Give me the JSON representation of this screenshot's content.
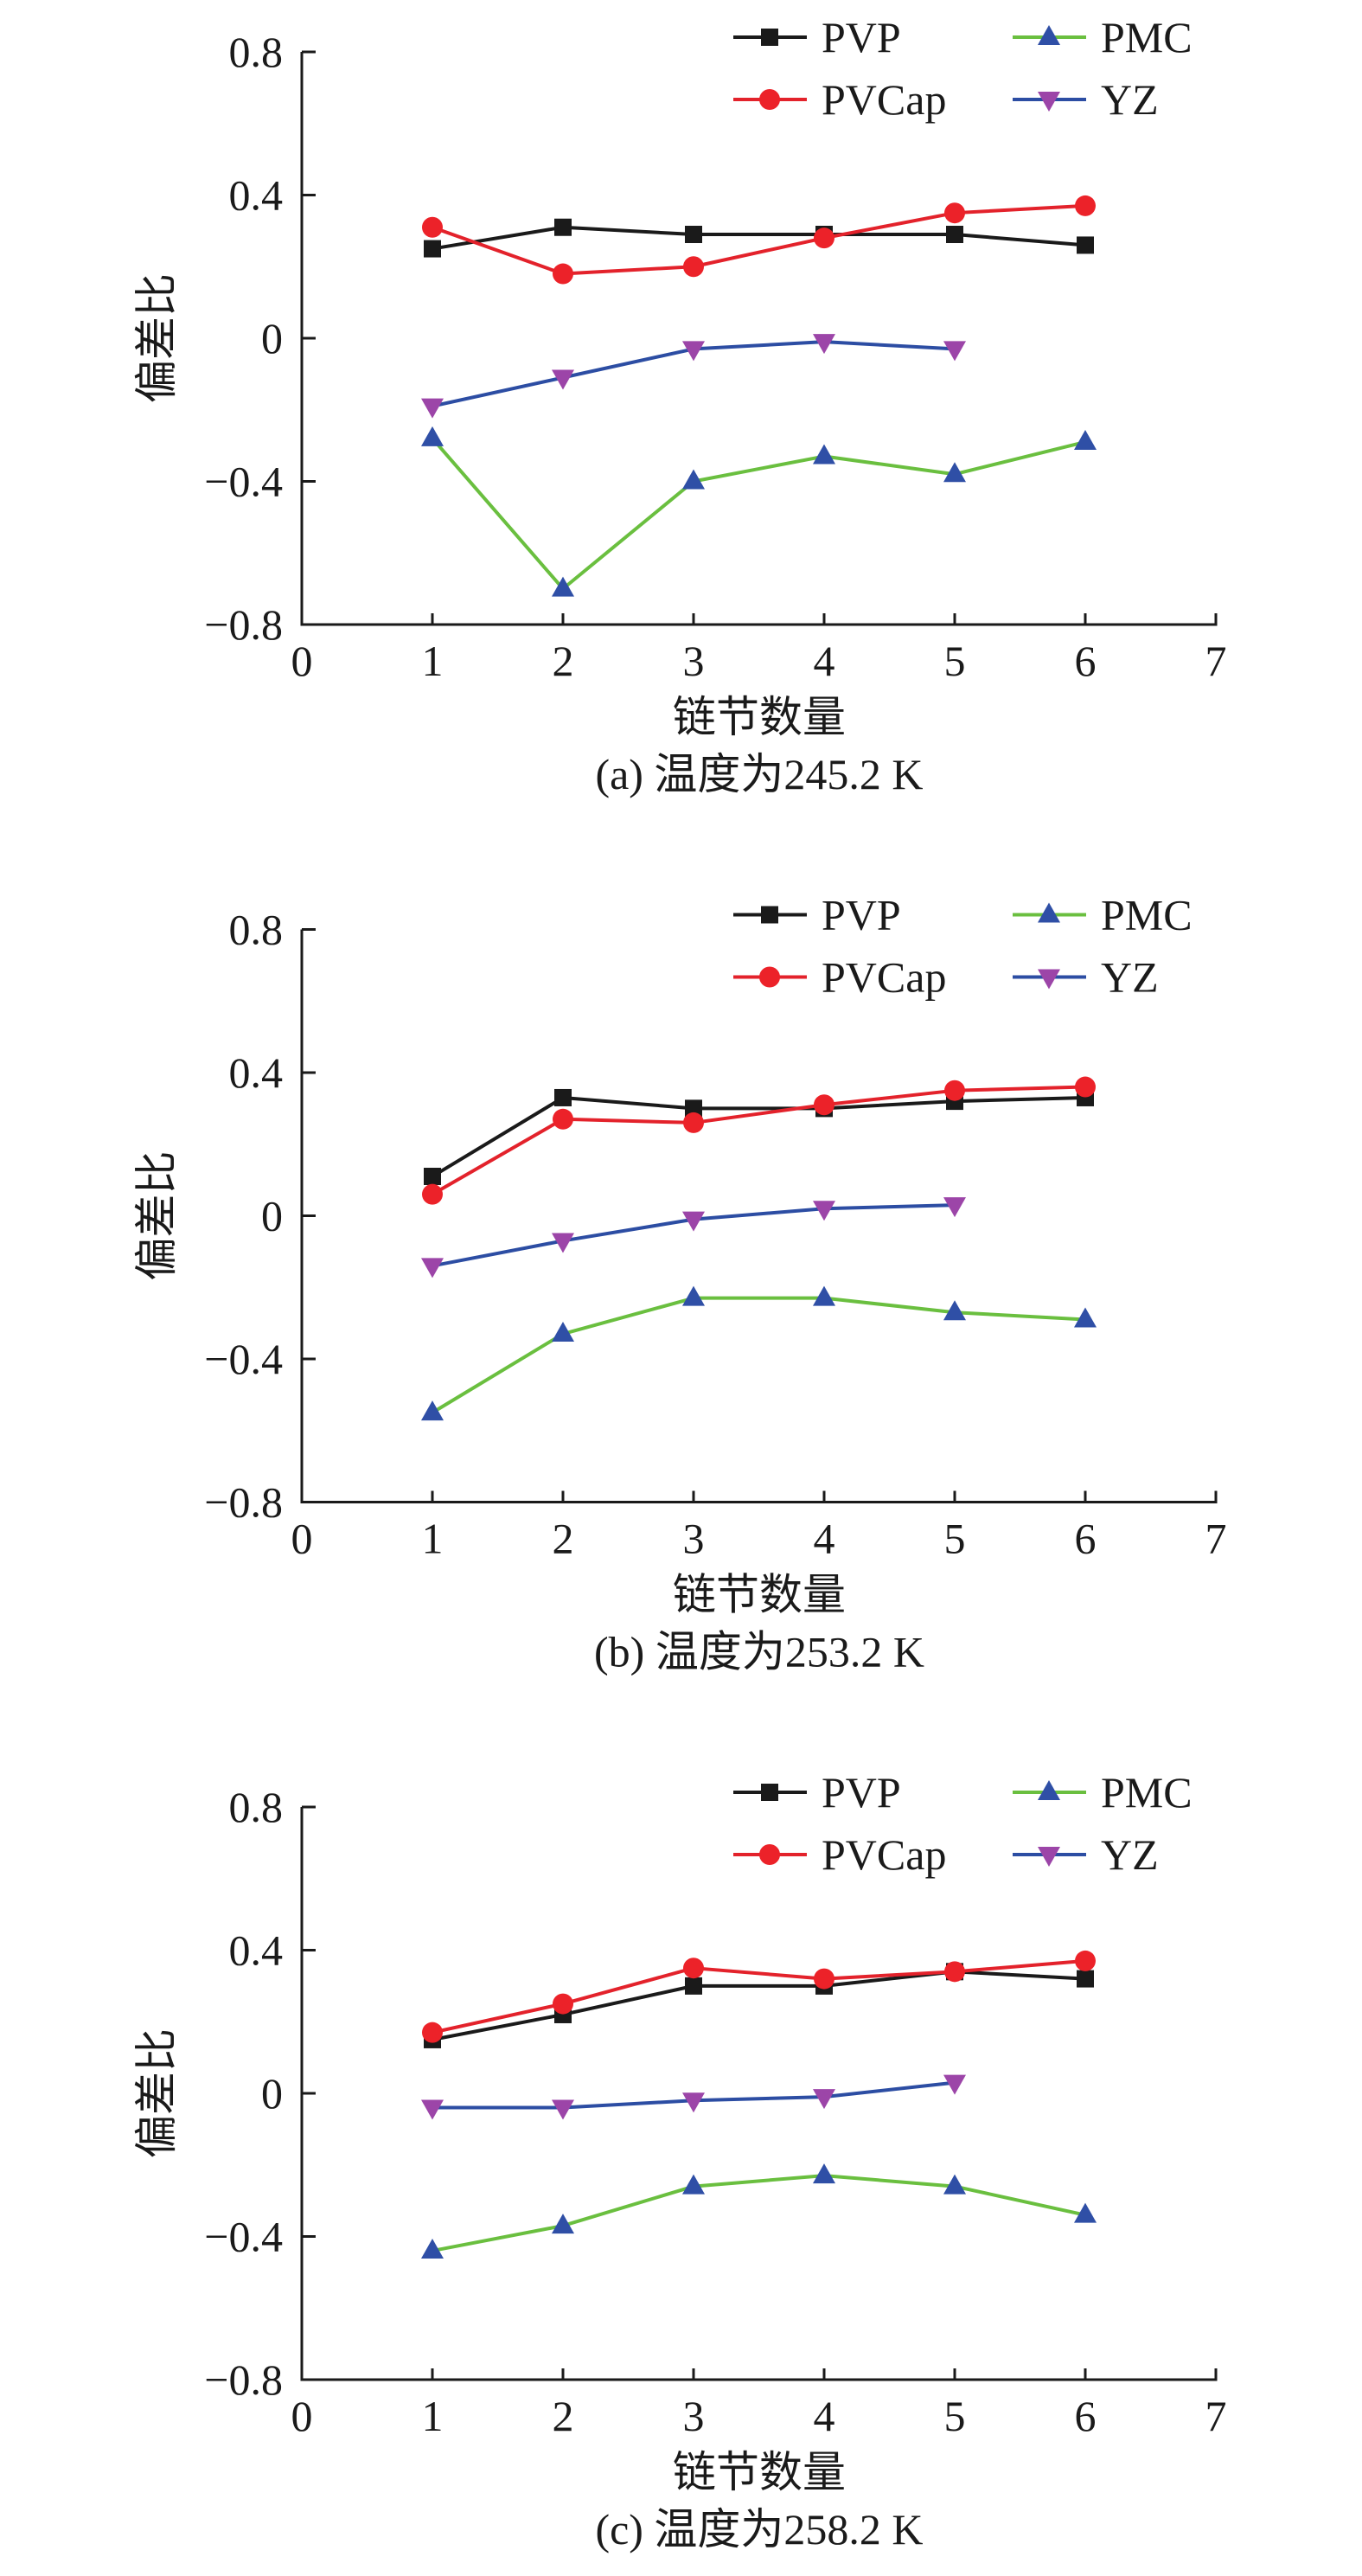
{
  "chart_data": [
    {
      "type": "line",
      "panel": "a",
      "caption": "(a) 温度为245.2 K",
      "xlabel": "链节数量",
      "ylabel": "偏差比",
      "xlim": [
        0,
        7
      ],
      "ylim": [
        -0.8,
        0.8
      ],
      "xticks": [
        "0",
        "1",
        "2",
        "3",
        "4",
        "5",
        "6",
        "7"
      ],
      "yticks": [
        "0.8",
        "0.4",
        "0",
        "−0.4",
        "−0.8"
      ],
      "legend_position": "top-right",
      "grid": false,
      "series": [
        {
          "name": "PVP",
          "x": [
            1,
            2,
            3,
            4,
            5,
            6
          ],
          "values": [
            0.25,
            0.31,
            0.29,
            0.29,
            0.29,
            0.26
          ]
        },
        {
          "name": "PVCap",
          "x": [
            1,
            2,
            3,
            4,
            5,
            6
          ],
          "values": [
            0.31,
            0.18,
            0.2,
            0.28,
            0.35,
            0.37
          ]
        },
        {
          "name": "PMC",
          "x": [
            1,
            2,
            3,
            4,
            5,
            6
          ],
          "values": [
            -0.28,
            -0.7,
            -0.4,
            -0.33,
            -0.38,
            -0.29
          ]
        },
        {
          "name": "YZ",
          "x": [
            1,
            2,
            3,
            4,
            5
          ],
          "values": [
            -0.19,
            -0.11,
            -0.03,
            -0.01,
            -0.03
          ]
        }
      ]
    },
    {
      "type": "line",
      "panel": "b",
      "caption": "(b) 温度为253.2 K",
      "xlabel": "链节数量",
      "ylabel": "偏差比",
      "xlim": [
        0,
        7
      ],
      "ylim": [
        -0.8,
        0.8
      ],
      "xticks": [
        "0",
        "1",
        "2",
        "3",
        "4",
        "5",
        "6",
        "7"
      ],
      "yticks": [
        "0.8",
        "0.4",
        "0",
        "−0.4",
        "−0.8"
      ],
      "legend_position": "top-right",
      "grid": false,
      "series": [
        {
          "name": "PVP",
          "x": [
            1,
            2,
            3,
            4,
            5,
            6
          ],
          "values": [
            0.11,
            0.33,
            0.3,
            0.3,
            0.32,
            0.33
          ]
        },
        {
          "name": "PVCap",
          "x": [
            1,
            2,
            3,
            4,
            5,
            6
          ],
          "values": [
            0.06,
            0.27,
            0.26,
            0.31,
            0.35,
            0.36
          ]
        },
        {
          "name": "PMC",
          "x": [
            1,
            2,
            3,
            4,
            5,
            6
          ],
          "values": [
            -0.55,
            -0.33,
            -0.23,
            -0.23,
            -0.27,
            -0.29
          ]
        },
        {
          "name": "YZ",
          "x": [
            1,
            2,
            3,
            4,
            5
          ],
          "values": [
            -0.14,
            -0.07,
            -0.01,
            0.02,
            0.03
          ]
        }
      ]
    },
    {
      "type": "line",
      "panel": "c",
      "caption": "(c) 温度为258.2 K",
      "xlabel": "链节数量",
      "ylabel": "偏差比",
      "xlim": [
        0,
        7
      ],
      "ylim": [
        -0.8,
        0.8
      ],
      "xticks": [
        "0",
        "1",
        "2",
        "3",
        "4",
        "5",
        "6",
        "7"
      ],
      "yticks": [
        "0.8",
        "0.4",
        "0",
        "−0.4",
        "−0.8"
      ],
      "legend_position": "top-right",
      "grid": false,
      "series": [
        {
          "name": "PVP",
          "x": [
            1,
            2,
            3,
            4,
            5,
            6
          ],
          "values": [
            0.15,
            0.22,
            0.3,
            0.3,
            0.34,
            0.32
          ]
        },
        {
          "name": "PVCap",
          "x": [
            1,
            2,
            3,
            4,
            5,
            6
          ],
          "values": [
            0.17,
            0.25,
            0.35,
            0.32,
            0.34,
            0.37
          ]
        },
        {
          "name": "PMC",
          "x": [
            1,
            2,
            3,
            4,
            5,
            6
          ],
          "values": [
            -0.44,
            -0.37,
            -0.26,
            -0.23,
            -0.26,
            -0.34
          ]
        },
        {
          "name": "YZ",
          "x": [
            1,
            2,
            3,
            4,
            5
          ],
          "values": [
            -0.04,
            -0.04,
            -0.02,
            -0.01,
            0.03
          ]
        }
      ]
    }
  ],
  "series_style": {
    "PVP": {
      "line_color": "#1a1a1a",
      "marker_color": "#1a1a1a",
      "marker": "square"
    },
    "PVCap": {
      "line_color": "#e3222b",
      "marker_color": "#ec2229",
      "marker": "circle"
    },
    "PMC": {
      "line_color": "#6abf3f",
      "marker_color": "#2f4fa6",
      "marker": "triangle-up"
    },
    "YZ": {
      "line_color": "#2c4da3",
      "marker_color": "#9c45a8",
      "marker": "triangle-down"
    }
  },
  "legend_order": [
    "PVP",
    "PMC",
    "PVCap",
    "YZ"
  ]
}
